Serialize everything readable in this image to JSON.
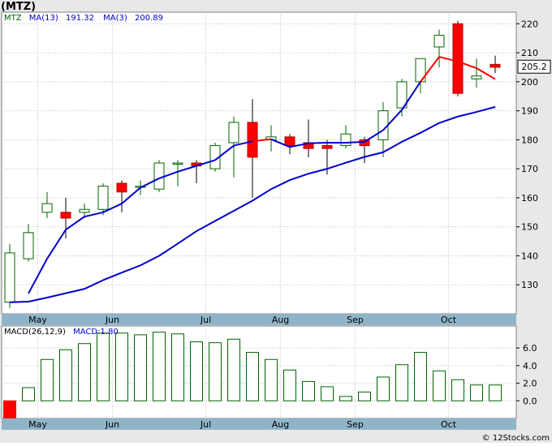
{
  "title": "(MTZ)",
  "credit": "© 12Stocks.com",
  "legend": {
    "ticker": "MTZ",
    "ma13_label": "MA(13)",
    "ma13_value": "191.32",
    "ma3_label": "MA(3)",
    "ma3_value": "200.89",
    "macd_params": "MACD(26,12,9)",
    "macd_label": "MACD:1.80"
  },
  "colors": {
    "up_candle": "#006400",
    "down_candle": "#ff0000",
    "ma_long": "#0000cc",
    "ma_short": "#ff0000",
    "macd_bar": "#006400",
    "macd_negative": "#ff0000",
    "panel_bg": "#ffffff",
    "outer_bg": "#e8e8e8",
    "grid": "#c0c0c0",
    "month_bar": "#8fb4c8"
  },
  "chart_data": [
    {
      "type": "candlestick",
      "name": "price",
      "ylim": [
        120,
        224
      ],
      "yticks": [
        130,
        140,
        150,
        160,
        170,
        180,
        190,
        200,
        210,
        220
      ],
      "last_price_label": "205.2",
      "month_labels": [
        {
          "label": "May",
          "index": 1.5
        },
        {
          "label": "Jun",
          "index": 5.5
        },
        {
          "label": "Jul",
          "index": 10.5
        },
        {
          "label": "Aug",
          "index": 14.5
        },
        {
          "label": "Sep",
          "index": 18.5
        },
        {
          "label": "Oct",
          "index": 23.5
        }
      ],
      "candles": [
        {
          "o": 124,
          "h": 144,
          "l": 122,
          "c": 141
        },
        {
          "o": 139,
          "h": 151,
          "l": 138,
          "c": 148
        },
        {
          "o": 155,
          "h": 162,
          "l": 153,
          "c": 158
        },
        {
          "o": 155,
          "h": 160,
          "l": 146,
          "c": 153
        },
        {
          "o": 155,
          "h": 158,
          "l": 153,
          "c": 156
        },
        {
          "o": 156,
          "h": 165,
          "l": 154,
          "c": 164
        },
        {
          "o": 165,
          "h": 166,
          "l": 155,
          "c": 162
        },
        {
          "o": 164,
          "h": 166,
          "l": 161,
          "c": 164
        },
        {
          "o": 163,
          "h": 173,
          "l": 162,
          "c": 172
        },
        {
          "o": 172,
          "h": 173,
          "l": 164,
          "c": 172
        },
        {
          "o": 172,
          "h": 173,
          "l": 165,
          "c": 171
        },
        {
          "o": 170,
          "h": 179,
          "l": 169,
          "c": 178
        },
        {
          "o": 179,
          "h": 188,
          "l": 167,
          "c": 186
        },
        {
          "o": 186,
          "h": 194,
          "l": 160,
          "c": 174
        },
        {
          "o": 180,
          "h": 185,
          "l": 176,
          "c": 181
        },
        {
          "o": 181,
          "h": 182,
          "l": 175,
          "c": 178
        },
        {
          "o": 179,
          "h": 187,
          "l": 174,
          "c": 177
        },
        {
          "o": 178,
          "h": 180,
          "l": 168,
          "c": 177
        },
        {
          "o": 178,
          "h": 185,
          "l": 177,
          "c": 182
        },
        {
          "o": 180,
          "h": 181,
          "l": 172,
          "c": 178
        },
        {
          "o": 180,
          "h": 193,
          "l": 174,
          "c": 190
        },
        {
          "o": 191,
          "h": 201,
          "l": 188,
          "c": 200
        },
        {
          "o": 200,
          "h": 208,
          "l": 196,
          "c": 208
        },
        {
          "o": 212,
          "h": 218,
          "l": 205,
          "c": 216
        },
        {
          "o": 220,
          "h": 221,
          "l": 195,
          "c": 196
        },
        {
          "o": 201,
          "h": 208,
          "l": 198,
          "c": 202
        },
        {
          "o": 206,
          "h": 209,
          "l": 203,
          "c": 205
        }
      ],
      "ma13": [
        124.0,
        124.2,
        125.6,
        127.1,
        128.6,
        131.6,
        134.2,
        136.7,
        140.0,
        144.2,
        148.5,
        152.0,
        155.5,
        159.0,
        163.0,
        166.1,
        168.3,
        170.0,
        172.1,
        174.1,
        175.7,
        179.3,
        182.4,
        185.8,
        188.0,
        189.6,
        191.32
      ],
      "ma3": [
        null,
        127.0,
        139.0,
        149.0,
        153.5,
        155.0,
        158.0,
        163.5,
        166.7,
        169.0,
        171.0,
        173.0,
        178.0,
        179.5,
        180.2,
        177.5,
        178.8,
        179.0,
        179.0,
        179.3,
        183.3,
        190.3,
        200.0,
        208.6,
        207.0,
        204.7,
        200.89
      ],
      "ma3_colors": [
        "",
        "blue",
        "blue",
        "blue",
        "blue",
        "blue",
        "blue",
        "blue",
        "blue",
        "blue",
        "blue",
        "blue",
        "blue",
        "blue",
        "red",
        "blue",
        "blue",
        "blue",
        "blue",
        "blue",
        "blue",
        "blue",
        "blue",
        "red",
        "red",
        "red",
        "red"
      ]
    },
    {
      "type": "bar",
      "name": "macd",
      "ylim": [
        -2.0,
        8.5
      ],
      "yticks": [
        0.0,
        2.0,
        4.0,
        6.0
      ],
      "ytick_labels": [
        "0.0",
        "2.0",
        "4.0",
        "6.0"
      ],
      "month_labels": [
        {
          "label": "May",
          "index": 1.5
        },
        {
          "label": "Jun",
          "index": 5.5
        },
        {
          "label": "Jul",
          "index": 10.5
        },
        {
          "label": "Aug",
          "index": 14.5
        },
        {
          "label": "Sep",
          "index": 18.5
        },
        {
          "label": "Oct",
          "index": 23.5
        }
      ],
      "values": [
        -2.0,
        1.5,
        4.7,
        5.8,
        6.5,
        7.7,
        7.7,
        7.5,
        7.8,
        7.6,
        6.7,
        6.6,
        7.0,
        5.5,
        4.7,
        3.5,
        2.2,
        1.6,
        0.5,
        1.0,
        2.7,
        4.1,
        5.5,
        3.4,
        2.4,
        1.8,
        1.8
      ]
    }
  ]
}
